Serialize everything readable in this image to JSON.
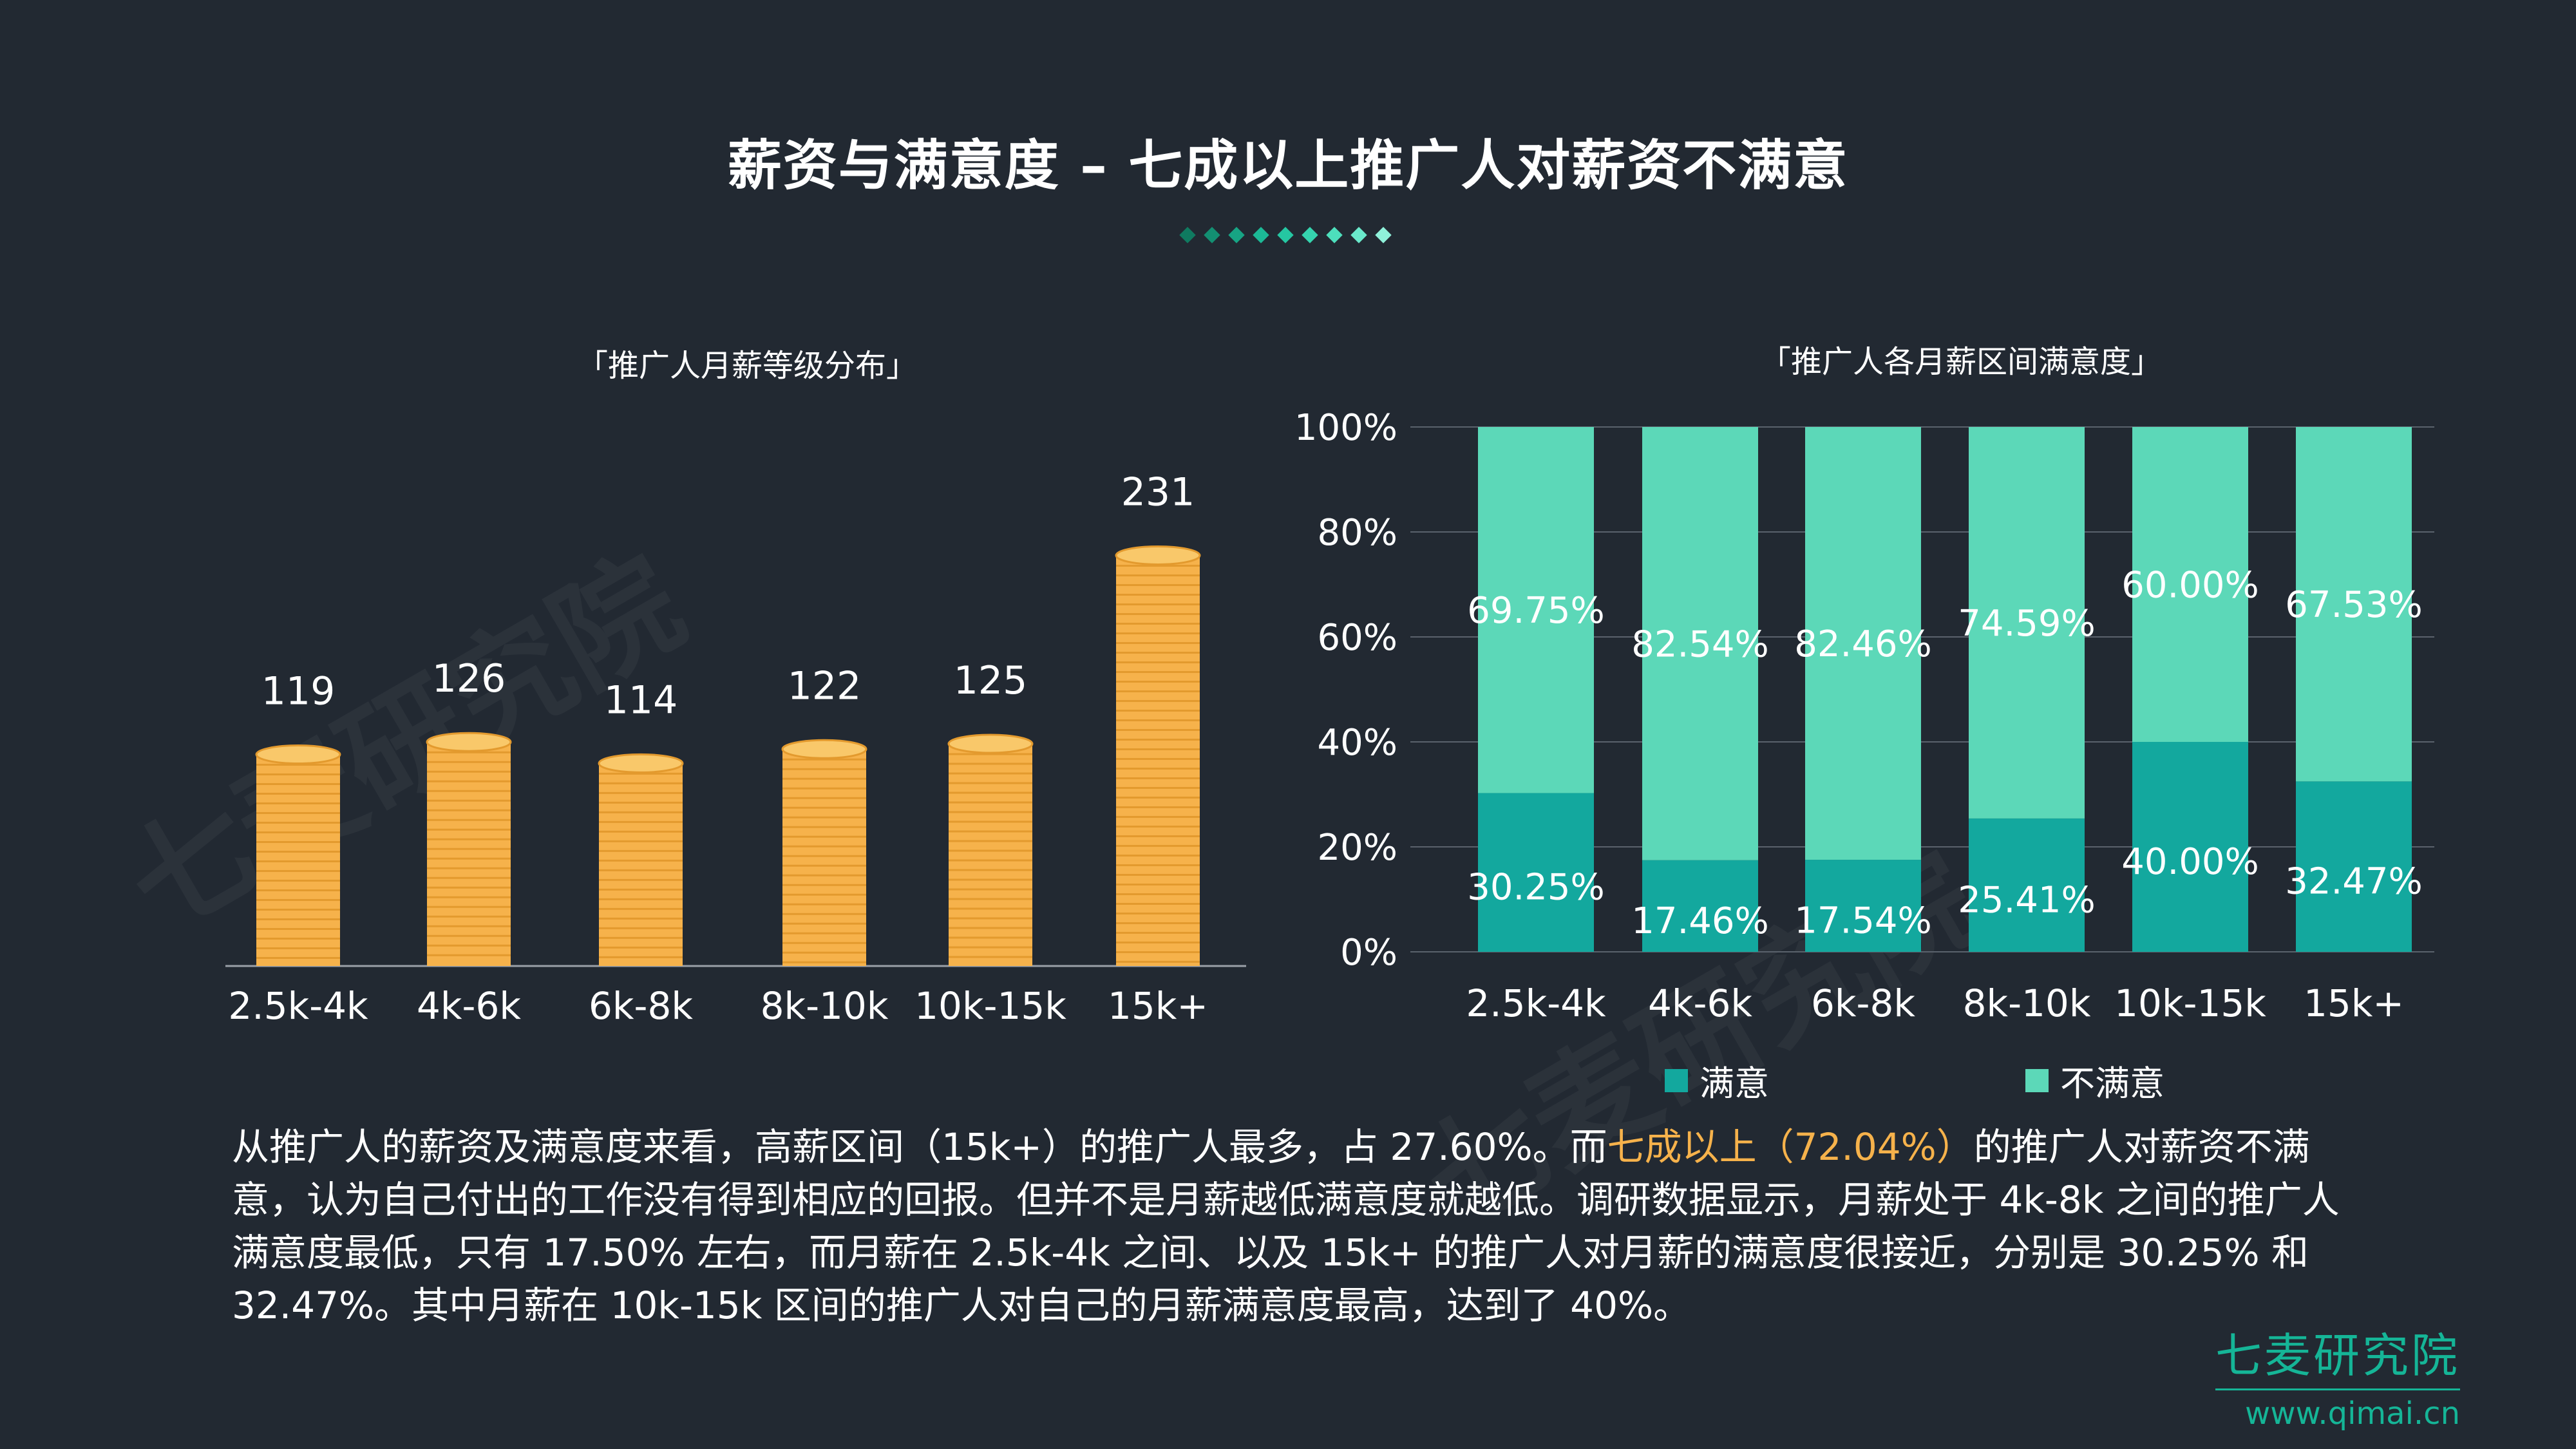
{
  "page": {
    "title": "薪资与满意度 – 七成以上推广人对薪资不满意",
    "watermark": "七麦研究院"
  },
  "colors": {
    "background": "#222932",
    "coin": "#f6b24b",
    "coin_dark": "#e39a2e",
    "satisfied": "#13a89e",
    "unsatisfied": "#5cd8b8",
    "accent": "#f6b24b",
    "brand": "#15b597",
    "diamonds": [
      "#0f7a60",
      "#138f72",
      "#17a484",
      "#1cb996",
      "#25c7a2",
      "#35d3ae",
      "#4ddfbc",
      "#6ae9cb",
      "#8ff1da"
    ]
  },
  "chart_data": [
    {
      "type": "bar",
      "title": "「推广人月薪等级分布」",
      "categories": [
        "2.5k-4k",
        "4k-6k",
        "6k-8k",
        "8k-10k",
        "10k-15k",
        "15k+"
      ],
      "values": [
        119,
        126,
        114,
        122,
        125,
        231
      ],
      "value_labels": [
        "119",
        "126",
        "114",
        "122",
        "125",
        "231"
      ],
      "xlabel": "",
      "ylabel": "",
      "ylim": [
        0,
        250
      ],
      "style": "coin stacks"
    },
    {
      "type": "bar",
      "stacked": true,
      "title": "「推广人各月薪区间满意度」",
      "categories": [
        "2.5k-4k",
        "4k-6k",
        "6k-8k",
        "8k-10k",
        "10k-15k",
        "15k+"
      ],
      "series": [
        {
          "name": "满意",
          "values": [
            30.25,
            17.46,
            17.54,
            25.41,
            40.0,
            32.47
          ],
          "labels": [
            "30.25%",
            "17.46%",
            "17.54%",
            "25.41%",
            "40.00%",
            "32.47%"
          ]
        },
        {
          "name": "不满意",
          "values": [
            69.75,
            82.54,
            82.46,
            74.59,
            60.0,
            67.53
          ],
          "labels": [
            "69.75%",
            "82.54%",
            "82.46%",
            "74.59%",
            "60.00%",
            "67.53%"
          ]
        }
      ],
      "ylim": [
        0,
        100
      ],
      "yticks": [
        "0%",
        "20%",
        "40%",
        "60%",
        "80%",
        "100%"
      ],
      "grid": true,
      "legend": "bottom"
    }
  ],
  "summary": {
    "part1": "从推广人的薪资及满意度来看，高薪区间（15k+）的推广人最多，占 27.60%。而",
    "highlight": "七成以上（72.04%）",
    "part2": "的推广人对薪资不满意，认为自己付出的工作没有得到相应的回报。但并不是月薪越低满意度就越低。调研数据显示，月薪处于 4k-8k 之间的推广人满意度最低，只有 17.50% 左右，而月薪在 2.5k-4k 之间、以及 15k+ 的推广人对月薪的满意度很接近，分别是 30.25% 和 32.47%。其中月薪在 10k-15k 区间的推广人对自己的月薪满意度最高，达到了 40%。"
  },
  "brand": {
    "name": "七麦研究院",
    "url": "www.qimai.cn"
  }
}
